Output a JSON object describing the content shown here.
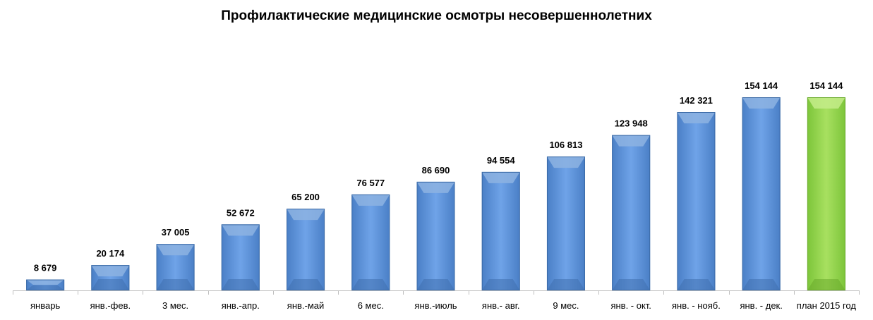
{
  "chart_data": {
    "type": "bar",
    "title": "Профилактические медицинские осмотры несовершеннолетних",
    "xlabel": "",
    "ylabel": "",
    "ylim": [
      0,
      160000
    ],
    "grid": false,
    "legend": "none",
    "categories": [
      "январь",
      "янв.-фев.",
      "3 мес.",
      "янв.-апр.",
      "янв.-май",
      "6 мес.",
      "янв.-июль",
      "янв.- авг.",
      "9 мес.",
      "янв. - окт.",
      "янв. - нояб.",
      "янв. - дек.",
      "план 2015 год"
    ],
    "values": [
      8679,
      20174,
      37005,
      52672,
      65200,
      76577,
      86690,
      94554,
      106813,
      123948,
      142321,
      154144,
      154144
    ],
    "data_labels": [
      "8 679",
      "20 174",
      "37 005",
      "52 672",
      "65 200",
      "76 577",
      "86 690",
      "94 554",
      "106 813",
      "123 948",
      "142 321",
      "154 144",
      "154 144"
    ],
    "colors": {
      "bar": "#4f81bd",
      "bar_light": "#8db3e2",
      "highlight_bar": "#92d050",
      "highlight_bar_light": "#c4ec8a",
      "axis": "#bfbfbf"
    },
    "highlight_index": 12
  }
}
